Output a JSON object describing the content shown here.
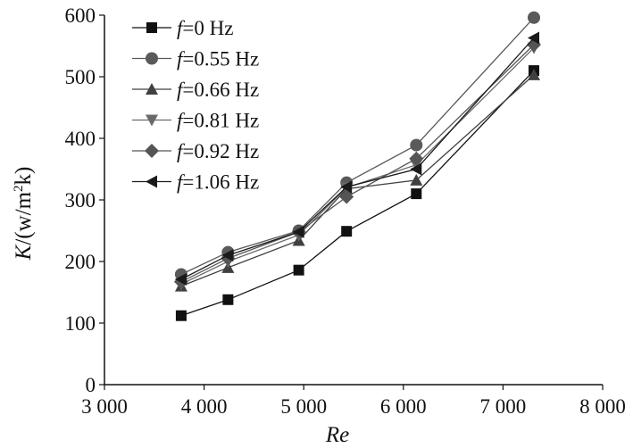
{
  "chart_data": {
    "type": "line",
    "title": "",
    "xlabel": "Re",
    "ylabel": {
      "var": "K",
      "unit_pre": "/(w/m",
      "unit_sup": "2",
      "unit_post": "k)"
    },
    "xlim": [
      3000,
      8000
    ],
    "ylim": [
      0,
      600
    ],
    "x_ticks": [
      3000,
      4000,
      5000,
      6000,
      7000,
      8000
    ],
    "x_tick_labels": [
      "3 000",
      "4 000",
      "5 000",
      "6 000",
      "7 000",
      "8 000"
    ],
    "y_ticks": [
      0,
      100,
      200,
      300,
      400,
      500,
      600
    ],
    "y_tick_labels": [
      "0",
      "100",
      "200",
      "300",
      "400",
      "500",
      "600"
    ],
    "grid": false,
    "legend_position": "top-left",
    "x": [
      3770,
      4240,
      4950,
      5430,
      6130,
      7310
    ],
    "series": [
      {
        "name": "0 Hz",
        "prefix": "f",
        "marker": "square",
        "color": "#111111",
        "values": [
          112,
          138,
          186,
          249,
          310,
          510
        ]
      },
      {
        "name": "0.55 Hz",
        "prefix": "f",
        "marker": "circle",
        "color": "#5a5a5a",
        "values": [
          179,
          215,
          250,
          328,
          389,
          596
        ]
      },
      {
        "name": "0.66 Hz",
        "prefix": "f",
        "marker": "triangle-up",
        "color": "#404040",
        "values": [
          160,
          190,
          234,
          318,
          332,
          503
        ]
      },
      {
        "name": "0.81 Hz",
        "prefix": "f",
        "marker": "triangle-down",
        "color": "#6a6a6a",
        "values": [
          163,
          200,
          243,
          320,
          357,
          547
        ]
      },
      {
        "name": "0.92 Hz",
        "prefix": "f",
        "marker": "diamond",
        "color": "#555555",
        "values": [
          167,
          205,
          248,
          305,
          367,
          552
        ]
      },
      {
        "name": "1.06 Hz",
        "prefix": "f",
        "marker": "triangle-left",
        "color": "#1a1a1a",
        "values": [
          171,
          210,
          248,
          321,
          350,
          563
        ]
      }
    ]
  }
}
